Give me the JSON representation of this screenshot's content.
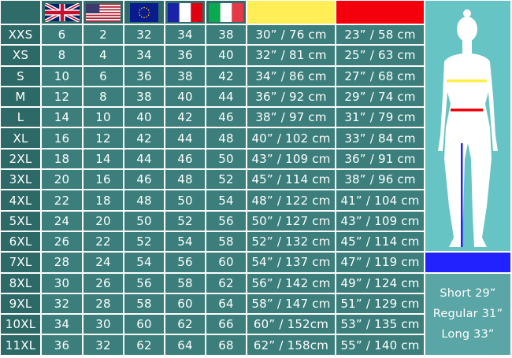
{
  "header": {
    "flags": [
      {
        "icon": "uk-flag-icon"
      },
      {
        "icon": "us-flag-icon"
      },
      {
        "icon": "eu-flag-icon"
      },
      {
        "icon": "france-flag-icon"
      },
      {
        "icon": "italy-flag-icon"
      }
    ],
    "bust_color": "#ffee44",
    "waist_color": "#f4000c",
    "inseam_color": "#2222ff"
  },
  "rows": [
    [
      "XXS",
      "6",
      "2",
      "32",
      "34",
      "38",
      "30” / 76 cm",
      "23” / 58 cm"
    ],
    [
      "XS",
      "8",
      "4",
      "34",
      "36",
      "40",
      "32” / 81 cm",
      "25” / 63 cm"
    ],
    [
      "S",
      "10",
      "6",
      "36",
      "38",
      "42",
      "34” / 86 cm",
      "27” / 68 cm"
    ],
    [
      "M",
      "12",
      "8",
      "38",
      "40",
      "44",
      "36” / 92 cm",
      "29” / 74 cm"
    ],
    [
      "L",
      "14",
      "10",
      "40",
      "42",
      "46",
      "38” / 97 cm",
      "31” / 79 cm"
    ],
    [
      "XL",
      "16",
      "12",
      "42",
      "44",
      "48",
      "40” / 102 cm",
      "33” / 84 cm"
    ],
    [
      "2XL",
      "18",
      "14",
      "44",
      "46",
      "50",
      "43” / 109 cm",
      "36” / 91 cm"
    ],
    [
      "3XL",
      "20",
      "16",
      "46",
      "48",
      "52",
      "45” / 114 cm",
      "38” / 96 cm"
    ],
    [
      "4XL",
      "22",
      "18",
      "48",
      "50",
      "54",
      "48” / 122 cm",
      "41” / 104 cm"
    ],
    [
      "5XL",
      "24",
      "20",
      "50",
      "52",
      "56",
      "50” / 127 cm",
      "43” / 109 cm"
    ],
    [
      "6XL",
      "26",
      "22",
      "52",
      "54",
      "58",
      "52” / 132 cm",
      "45” / 114 cm"
    ],
    [
      "7XL",
      "28",
      "24",
      "54",
      "56",
      "60",
      "54” / 137 cm",
      "47” / 119 cm"
    ],
    [
      "8XL",
      "30",
      "26",
      "56",
      "58",
      "62",
      "56” / 142 cm",
      "49” / 124 cm"
    ],
    [
      "9XL",
      "32",
      "28",
      "58",
      "60",
      "64",
      "58” / 147 cm",
      "51” / 129 cm"
    ],
    [
      "10XL",
      "34",
      "30",
      "60",
      "62",
      "66",
      "60” / 152cm",
      "53” / 135 cm"
    ],
    [
      "11XL",
      "36",
      "32",
      "62",
      "64",
      "68",
      "62” / 158cm",
      "55” / 140 cm"
    ]
  ],
  "inseam": {
    "lines": [
      "Short 29”",
      "Regular 31”",
      "Long 33”"
    ]
  }
}
